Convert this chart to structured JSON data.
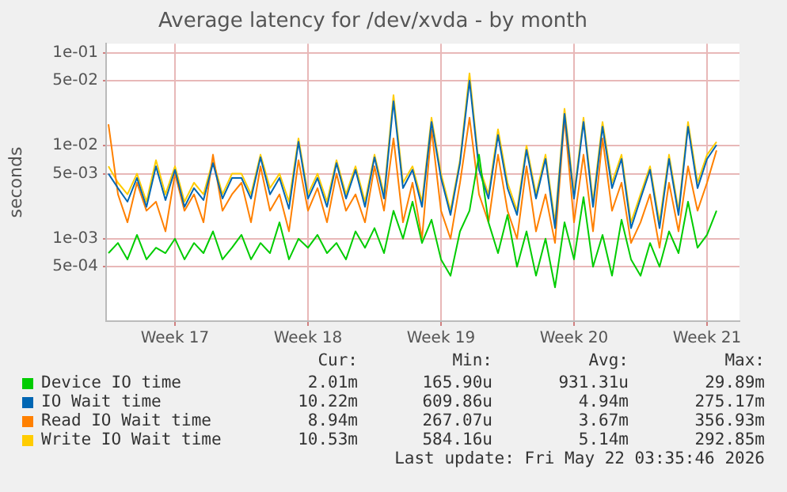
{
  "chart_data": {
    "type": "line",
    "title": "Average latency for /dev/xvda - by month",
    "ylabel": "seconds",
    "x": [
      "2026-04-20T00:00",
      "2026-04-20T12:00",
      "2026-04-21T00:00",
      "2026-04-21T12:00",
      "2026-04-22T00:00",
      "2026-04-22T12:00",
      "2026-04-23T00:00",
      "2026-04-23T12:00",
      "2026-04-24T00:00",
      "2026-04-24T12:00",
      "2026-04-25T00:00",
      "2026-04-25T12:00",
      "2026-04-26T00:00",
      "2026-04-26T12:00",
      "2026-04-27T00:00",
      "2026-04-27T12:00",
      "2026-04-28T00:00",
      "2026-04-28T12:00",
      "2026-04-29T00:00",
      "2026-04-29T12:00",
      "2026-04-30T00:00",
      "2026-04-30T12:00",
      "2026-05-01T00:00",
      "2026-05-01T12:00",
      "2026-05-02T00:00",
      "2026-05-02T12:00",
      "2026-05-03T00:00",
      "2026-05-03T12:00",
      "2026-05-04T00:00",
      "2026-05-04T12:00",
      "2026-05-05T00:00",
      "2026-05-05T12:00",
      "2026-05-06T00:00",
      "2026-05-06T12:00",
      "2026-05-07T00:00",
      "2026-05-07T12:00",
      "2026-05-08T00:00",
      "2026-05-08T12:00",
      "2026-05-09T00:00",
      "2026-05-09T12:00",
      "2026-05-10T00:00",
      "2026-05-10T12:00",
      "2026-05-11T00:00",
      "2026-05-11T12:00",
      "2026-05-12T00:00",
      "2026-05-12T12:00",
      "2026-05-13T00:00",
      "2026-05-13T12:00",
      "2026-05-14T00:00",
      "2026-05-14T12:00",
      "2026-05-15T00:00",
      "2026-05-15T12:00",
      "2026-05-16T00:00",
      "2026-05-16T12:00",
      "2026-05-17T00:00",
      "2026-05-17T12:00",
      "2026-05-18T00:00",
      "2026-05-18T12:00",
      "2026-05-19T00:00",
      "2026-05-19T12:00",
      "2026-05-20T00:00",
      "2026-05-20T12:00",
      "2026-05-21T00:00",
      "2026-05-21T12:00",
      "2026-05-22T00:00"
    ],
    "series": [
      {
        "name": "Device IO time",
        "color": "#00cc00",
        "values": [
          0.0007,
          0.0009,
          0.0006,
          0.0011,
          0.0006,
          0.0008,
          0.0007,
          0.001,
          0.0006,
          0.0009,
          0.0007,
          0.0012,
          0.0006,
          0.0008,
          0.0011,
          0.0006,
          0.0009,
          0.0007,
          0.0015,
          0.0006,
          0.001,
          0.0008,
          0.0011,
          0.0007,
          0.0009,
          0.0006,
          0.0012,
          0.0008,
          0.0013,
          0.0007,
          0.002,
          0.001,
          0.0025,
          0.0009,
          0.0016,
          0.0006,
          0.0004,
          0.0012,
          0.002,
          0.008,
          0.0015,
          0.0007,
          0.0018,
          0.0005,
          0.0012,
          0.0004,
          0.001,
          0.0003,
          0.0015,
          0.0006,
          0.0028,
          0.0005,
          0.0011,
          0.0004,
          0.0016,
          0.0006,
          0.0004,
          0.0009,
          0.0005,
          0.0012,
          0.0007,
          0.0025,
          0.0008,
          0.0011,
          0.002
        ]
      },
      {
        "name": "IO Wait time",
        "color": "#0066b3",
        "values": [
          0.005,
          0.0035,
          0.0025,
          0.0045,
          0.0022,
          0.006,
          0.0026,
          0.0055,
          0.0022,
          0.0035,
          0.0026,
          0.0065,
          0.0027,
          0.0045,
          0.0045,
          0.0027,
          0.0075,
          0.003,
          0.0045,
          0.0021,
          0.011,
          0.0027,
          0.0045,
          0.0022,
          0.0065,
          0.0027,
          0.0055,
          0.0022,
          0.0075,
          0.0027,
          0.03,
          0.0035,
          0.0055,
          0.0022,
          0.018,
          0.0045,
          0.0018,
          0.0065,
          0.05,
          0.0055,
          0.0027,
          0.013,
          0.0035,
          0.0018,
          0.009,
          0.0027,
          0.0072,
          0.0013,
          0.022,
          0.0027,
          0.018,
          0.0022,
          0.016,
          0.0035,
          0.0072,
          0.0013,
          0.0027,
          0.0055,
          0.0013,
          0.0072,
          0.0018,
          0.016,
          0.0035,
          0.0072,
          0.0102
        ]
      },
      {
        "name": "Read IO Wait time",
        "color": "#ff8000",
        "values": [
          0.017,
          0.003,
          0.0015,
          0.004,
          0.002,
          0.0025,
          0.0012,
          0.005,
          0.002,
          0.003,
          0.0015,
          0.008,
          0.002,
          0.003,
          0.004,
          0.0015,
          0.006,
          0.002,
          0.003,
          0.0012,
          0.007,
          0.002,
          0.0035,
          0.0015,
          0.005,
          0.002,
          0.003,
          0.0015,
          0.006,
          0.002,
          0.012,
          0.0015,
          0.004,
          0.001,
          0.015,
          0.002,
          0.001,
          0.004,
          0.02,
          0.003,
          0.0015,
          0.008,
          0.002,
          0.001,
          0.006,
          0.0012,
          0.003,
          0.0009,
          0.02,
          0.0015,
          0.008,
          0.0012,
          0.012,
          0.002,
          0.004,
          0.0009,
          0.0015,
          0.003,
          0.0008,
          0.004,
          0.0012,
          0.006,
          0.002,
          0.004,
          0.0089
        ]
      },
      {
        "name": "Write IO Wait time",
        "color": "#ffcc00",
        "values": [
          0.006,
          0.004,
          0.003,
          0.005,
          0.0025,
          0.007,
          0.003,
          0.006,
          0.0025,
          0.004,
          0.003,
          0.007,
          0.003,
          0.005,
          0.005,
          0.003,
          0.008,
          0.0035,
          0.005,
          0.0025,
          0.012,
          0.003,
          0.005,
          0.0025,
          0.007,
          0.003,
          0.006,
          0.0025,
          0.008,
          0.003,
          0.035,
          0.004,
          0.006,
          0.0025,
          0.02,
          0.005,
          0.002,
          0.007,
          0.06,
          0.006,
          0.003,
          0.015,
          0.004,
          0.002,
          0.01,
          0.003,
          0.008,
          0.0015,
          0.025,
          0.003,
          0.02,
          0.0025,
          0.018,
          0.004,
          0.008,
          0.0015,
          0.003,
          0.006,
          0.0015,
          0.008,
          0.002,
          0.018,
          0.004,
          0.008,
          0.011
        ]
      }
    ],
    "xlim": [
      "2026-04-19T21:00",
      "2026-05-23T05:00"
    ],
    "xticks": [
      {
        "value": "2026-04-23T12:00",
        "label": "Week 17"
      },
      {
        "value": "2026-04-30T12:00",
        "label": "Week 18"
      },
      {
        "value": "2026-05-07T12:00",
        "label": "Week 19"
      },
      {
        "value": "2026-05-14T12:00",
        "label": "Week 20"
      },
      {
        "value": "2026-05-21T12:00",
        "label": "Week 21"
      }
    ],
    "ylim": [
      0.00013,
      0.125
    ],
    "yticks": [
      {
        "value": 0.0005,
        "label": "5e-04"
      },
      {
        "value": 0.001,
        "label": "1e-03"
      },
      {
        "value": 0.005,
        "label": "5e-03"
      },
      {
        "value": 0.01,
        "label": "1e-02"
      },
      {
        "value": 0.05,
        "label": "5e-02"
      },
      {
        "value": 0.1,
        "label": "1e-01"
      }
    ],
    "log": "y",
    "grid": true,
    "legend": "bottom",
    "marker": "none",
    "line_style": "solid",
    "annotations": [
      "Cur:",
      "Min:",
      "Avg:",
      "Max:",
      "2.01m",
      "165.90u",
      "931.31u",
      "29.89m",
      "10.22m",
      "609.86u",
      "4.94m",
      "275.17m",
      "8.94m",
      "267.07u",
      "3.67m",
      "356.93m",
      "10.53m",
      "584.16u",
      "5.14m",
      "292.85m",
      "Last update: Fri May 22 03:35:46 2026"
    ]
  }
}
